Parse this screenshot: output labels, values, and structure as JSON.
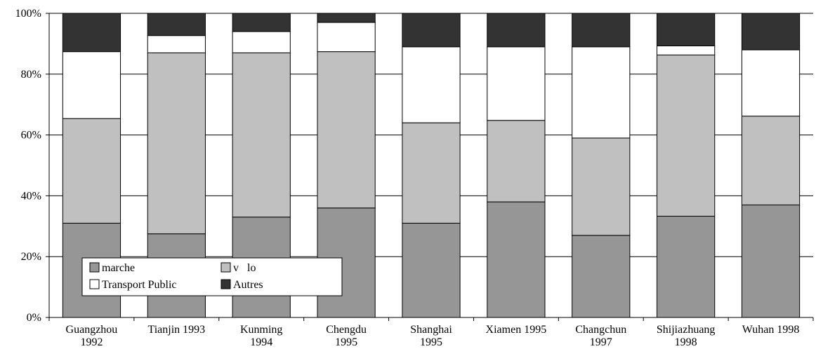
{
  "chart_data": {
    "type": "bar",
    "stacked": true,
    "percent": true,
    "categories": [
      [
        "Guangzhou",
        "1992"
      ],
      [
        "Tianjin 1993"
      ],
      [
        "Kunming",
        "1994"
      ],
      [
        "Chengdu",
        "1995"
      ],
      [
        "Shanghai",
        "1995"
      ],
      [
        "Xiamen 1995"
      ],
      [
        "Changchun",
        "1997"
      ],
      [
        "Shijiazhuang",
        "1998"
      ],
      [
        "Wuhan 1998"
      ]
    ],
    "series": [
      {
        "name": "marche",
        "color": "#969696",
        "values": [
          31,
          27.5,
          33,
          36,
          31,
          38,
          27,
          33.3,
          37
        ]
      },
      {
        "name": "v   lo",
        "color": "#c0c0c0",
        "values": [
          34.4,
          59.5,
          54,
          51.4,
          33,
          26.8,
          32,
          53,
          29.2
        ]
      },
      {
        "name": "Transport Public",
        "color": "#ffffff",
        "values": [
          22,
          5.7,
          7,
          9.6,
          25,
          24.2,
          30,
          3,
          21.8
        ]
      },
      {
        "name": "Autres",
        "color": "#333333",
        "values": [
          12.6,
          7.3,
          6,
          3,
          11,
          11,
          11,
          10.7,
          12
        ]
      }
    ],
    "ylim": [
      0,
      100
    ],
    "yticks": [
      "0%",
      "20%",
      "40%",
      "60%",
      "80%",
      "100%"
    ],
    "grid": true,
    "legend_placement": "bottom-left, inside plot",
    "title": "",
    "xlabel": "",
    "ylabel": ""
  }
}
